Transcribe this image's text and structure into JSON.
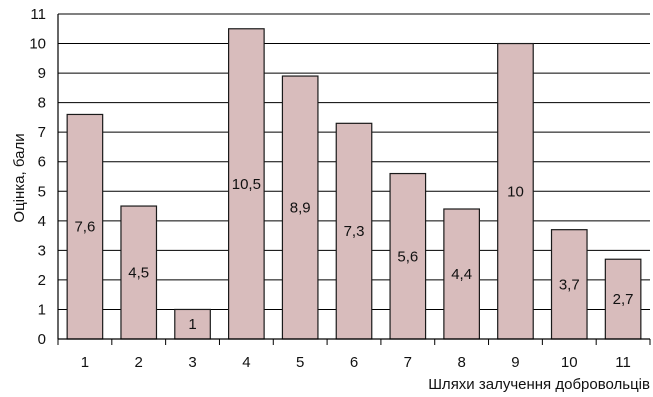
{
  "chart_data": {
    "type": "bar",
    "categories": [
      "1",
      "2",
      "3",
      "4",
      "5",
      "6",
      "7",
      "8",
      "9",
      "10",
      "11"
    ],
    "values": [
      7.6,
      4.5,
      1,
      10.5,
      8.9,
      7.3,
      5.6,
      4.4,
      10,
      3.7,
      2.7
    ],
    "value_labels": [
      "7,6",
      "4,5",
      "1",
      "10,5",
      "8,9",
      "7,3",
      "5,6",
      "4,4",
      "10",
      "3,7",
      "2,7"
    ],
    "y_ticks": [
      "0",
      "1",
      "2",
      "3",
      "4",
      "5",
      "6",
      "7",
      "8",
      "9",
      "10",
      "11"
    ],
    "xlabel": "Шляхи залучення добровольців",
    "ylabel": "Оцінка, бали",
    "ylim": [
      0,
      11
    ],
    "grid": true,
    "colors": {
      "bar_fill": "#d8bcbc",
      "bar_stroke": "#1a1a1a",
      "grid": "#000000",
      "axis": "#000000"
    }
  }
}
